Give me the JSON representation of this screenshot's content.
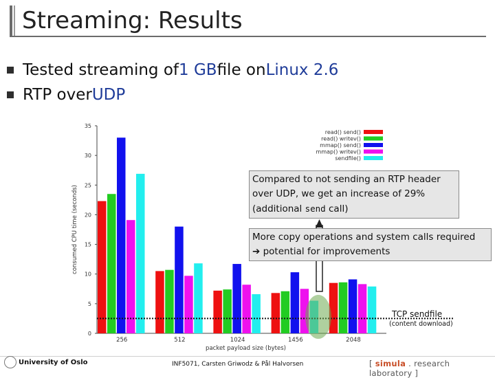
{
  "slide": {
    "title": "Streaming: Results",
    "bullets": [
      {
        "pre": "Tested streaming of ",
        "hl1": "1 GB",
        "mid": " file on ",
        "hl2": "Linux 2.6",
        "post": ""
      },
      {
        "pre": "RTP over ",
        "hl1": "UDP",
        "mid": "",
        "hl2": "",
        "post": ""
      }
    ],
    "callout1": {
      "line1": "Compared to not sending an RTP header",
      "line2": "over UDP, we get an increase of 29%",
      "line3_pre": "(additional ",
      "line3_code": "send",
      "line3_post": " call)"
    },
    "callout2": {
      "line1": "More copy operations and system calls required",
      "line2": "➔ potential for improvements"
    },
    "tcp_label": "TCP sendfile",
    "tcp_sublabel": "(content download)",
    "tcp_value": 2.5,
    "footer": {
      "university": "University of Oslo",
      "course": "INF5071, Carsten Griwodz & Pål Halvorsen",
      "lab_pre": "[ ",
      "lab_brand": "simula",
      "lab_post": " . research laboratory ]"
    }
  },
  "chart_data": {
    "type": "bar",
    "categories": [
      "256",
      "512",
      "1024",
      "1456",
      "2048"
    ],
    "xlabel": "packet payload size (bytes)",
    "ylabel": "consumed CPU time (seconds)",
    "ylim": [
      0,
      35
    ],
    "yticks": [
      0,
      5,
      10,
      15,
      20,
      25,
      30,
      35
    ],
    "legend_position": "top-right",
    "series": [
      {
        "name": "read() send()",
        "color": "#ee1111",
        "values": [
          22.3,
          10.5,
          7.2,
          6.8,
          8.5
        ]
      },
      {
        "name": "read() writev()",
        "color": "#22cc22",
        "values": [
          23.5,
          10.7,
          7.4,
          7.1,
          8.6
        ]
      },
      {
        "name": "mmap() send()",
        "color": "#1111ee",
        "values": [
          33.0,
          18.0,
          11.7,
          10.3,
          9.1
        ]
      },
      {
        "name": "mmap() writev()",
        "color": "#ee11ee",
        "values": [
          19.1,
          9.7,
          8.2,
          7.5,
          8.3
        ]
      },
      {
        "name": "sendfile()",
        "color": "#22eeee",
        "values": [
          26.9,
          11.8,
          6.6,
          5.5,
          7.9
        ]
      }
    ]
  }
}
